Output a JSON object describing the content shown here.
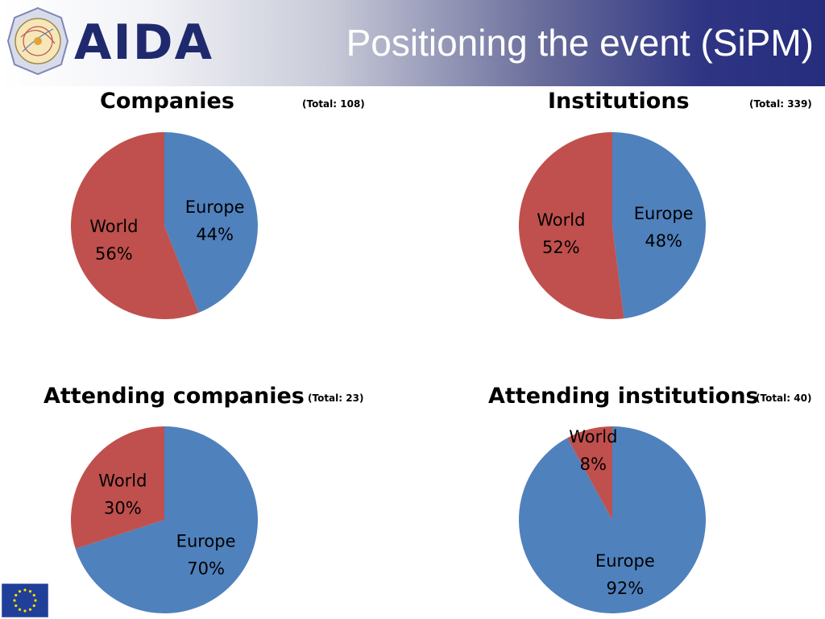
{
  "header": {
    "logo_text": "AIDA",
    "title": "Positioning the event (SiPM)"
  },
  "colors": {
    "europe": "#4f81bd",
    "world": "#c0504d",
    "header_dark": "#262d7e"
  },
  "icons": {
    "logo": "aida-detector-logo-icon",
    "flag": "eu-flag-icon"
  },
  "charts": [
    {
      "title": "Companies",
      "total": "(Total: 108)"
    },
    {
      "title": "Institutions",
      "total": "(Total: 339)"
    },
    {
      "title": "Attending companies",
      "total": "(Total: 23)"
    },
    {
      "title": "Attending institutions",
      "total": "(Total: 40)"
    }
  ],
  "chart_data": [
    {
      "type": "pie",
      "title": "Companies",
      "total_label": "(Total: 108)",
      "slices": [
        {
          "label": "Europe",
          "value": 44,
          "pct_label": "44%",
          "color": "#4f81bd"
        },
        {
          "label": "World",
          "value": 56,
          "pct_label": "56%",
          "color": "#c0504d"
        }
      ]
    },
    {
      "type": "pie",
      "title": "Institutions",
      "total_label": "(Total: 339)",
      "slices": [
        {
          "label": "Europe",
          "value": 48,
          "pct_label": "48%",
          "color": "#4f81bd"
        },
        {
          "label": "World",
          "value": 52,
          "pct_label": "52%",
          "color": "#c0504d"
        }
      ]
    },
    {
      "type": "pie",
      "title": "Attending companies",
      "total_label": "(Total: 23)",
      "slices": [
        {
          "label": "Europe",
          "value": 70,
          "pct_label": "70%",
          "color": "#4f81bd"
        },
        {
          "label": "World",
          "value": 30,
          "pct_label": "30%",
          "color": "#c0504d"
        }
      ]
    },
    {
      "type": "pie",
      "title": "Attending institutions",
      "total_label": "(Total: 40)",
      "slices": [
        {
          "label": "Europe",
          "value": 92,
          "pct_label": "92%",
          "color": "#4f81bd"
        },
        {
          "label": "World",
          "value": 8,
          "pct_label": "8%",
          "color": "#c0504d"
        }
      ]
    }
  ]
}
